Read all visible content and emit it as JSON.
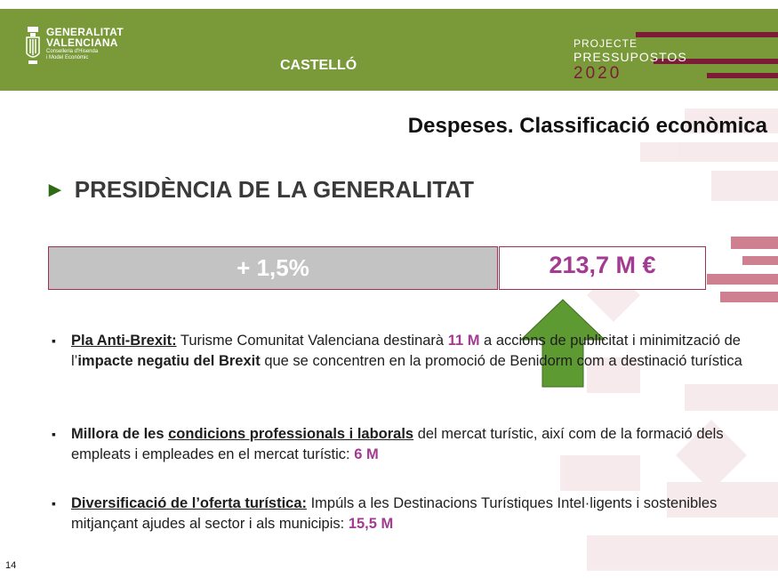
{
  "header": {
    "logo": {
      "line1": "GENERALITAT",
      "line2": "VALENCIANA",
      "line3": "Conselleria d'Hisenda",
      "line4": "i Model Econòmic"
    },
    "city": "CASTELLÓ",
    "projecte": {
      "line1": "PROJECTE",
      "line2": "PRESSUPOSTOS",
      "line3": "2020"
    }
  },
  "slide": {
    "title": "Despeses. Classificació econòmica",
    "section_arrow": "►",
    "section": "PRESIDÈNCIA DE LA GENERALITAT",
    "change": "+  1,5%",
    "amount": "213,7 M €"
  },
  "bullets": [
    {
      "marker": "▪",
      "title": "Pla Anti-Brexit:",
      "t1": " Turisme Comunitat Valenciana destinarà ",
      "h1": "11 M",
      "t2": " a accions de publicitat i minimització de l’",
      "b1": "impacte negatiu del Brexit",
      "t3": " que se concentren en la promoció de Benidorm com a destinació turística"
    },
    {
      "marker": "▪",
      "pre": "Millora de les ",
      "title": "condicions professionals i laborals",
      "t1": " del mercat turístic, així com de la formació dels empleats i empleades en el mercat turístic: ",
      "h1": "6 M"
    },
    {
      "marker": "▪",
      "title": "Diversificació de l’oferta turística:",
      "t1": " Impúls a les Destinacions Turístiques Intel·ligents i sostenibles mitjançant ajudes al sector i als municipis: ",
      "h1": "15,5 M"
    }
  ],
  "page_number": "14",
  "colors": {
    "header_green": "#7a9a3a",
    "accent_maroon": "#7b1d36",
    "highlight_magenta": "#a33b93",
    "arrow_green": "#5e9a32"
  }
}
